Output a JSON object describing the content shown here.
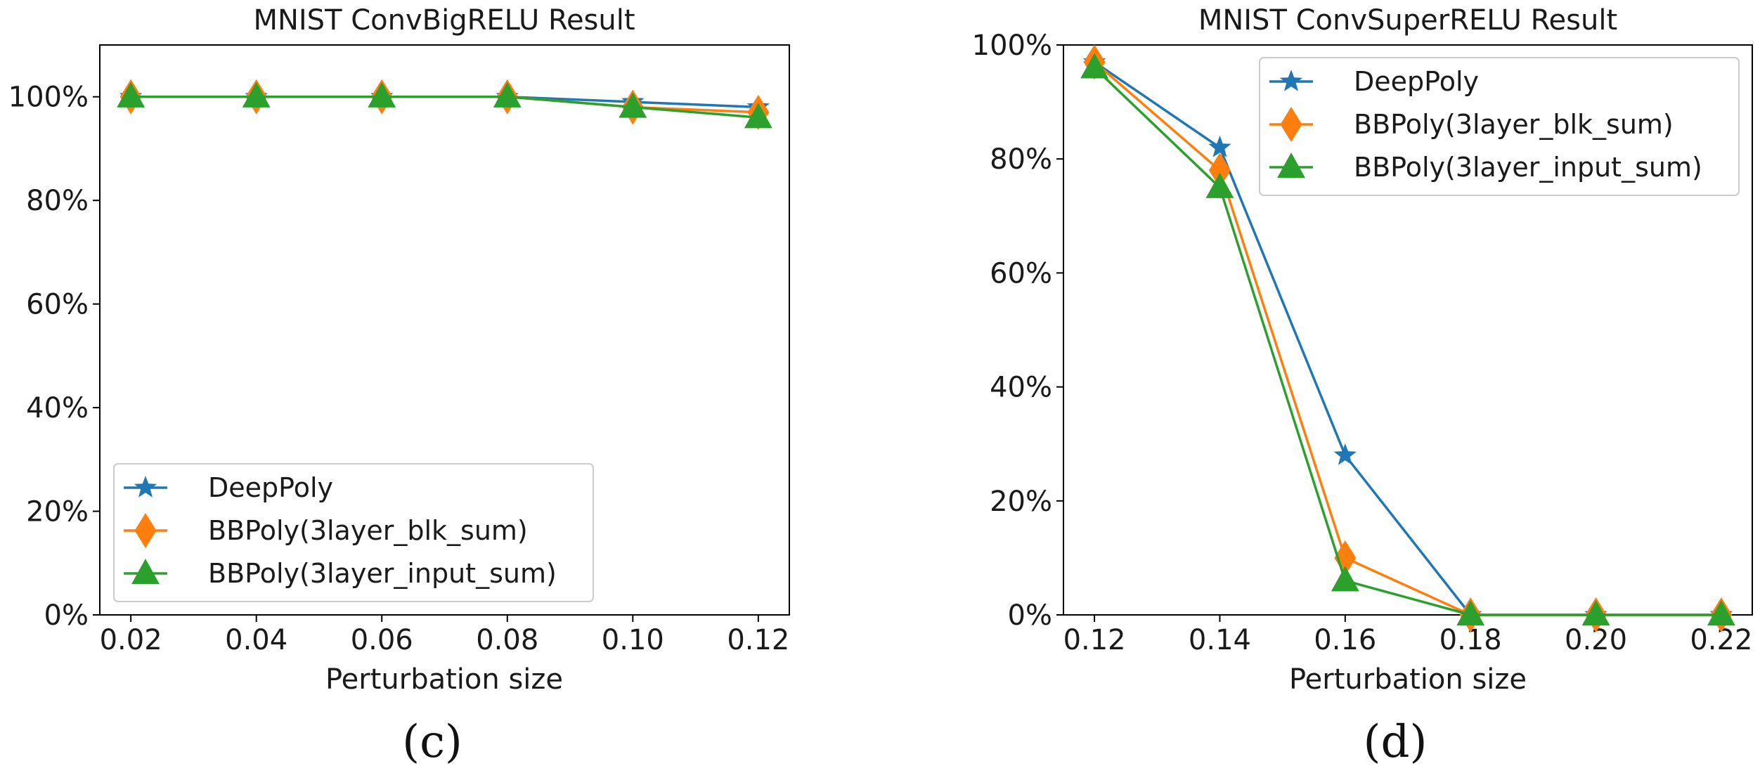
{
  "colors": {
    "DeepPoly": "#1f77b4",
    "BBPoly(3layer_blk_sum)": "#ff7f0e",
    "BBPoly(3layer_input_sum)": "#2ca02c"
  },
  "chart_data": [
    {
      "type": "line",
      "title": "MNIST ConvBigRELU Result",
      "xlabel": "Perturbation size",
      "caption": "(c)",
      "x": [
        0.02,
        0.04,
        0.06,
        0.08,
        0.1,
        0.12
      ],
      "x_tick_labels": [
        "0.02",
        "0.04",
        "0.06",
        "0.08",
        "0.10",
        "0.12"
      ],
      "y_tick_labels": [
        "0%",
        "20%",
        "40%",
        "60%",
        "80%",
        "100%"
      ],
      "y_ticks": [
        0,
        20,
        40,
        60,
        80,
        100
      ],
      "ylim": [
        0,
        110
      ],
      "legend_location": "lower-left",
      "series": [
        {
          "name": "DeepPoly",
          "marker": "star",
          "values": [
            100,
            100,
            100,
            100,
            99,
            98
          ]
        },
        {
          "name": "BBPoly(3layer_blk_sum)",
          "marker": "diamond",
          "values": [
            100,
            100,
            100,
            100,
            98,
            97
          ]
        },
        {
          "name": "BBPoly(3layer_input_sum)",
          "marker": "triangle",
          "values": [
            100,
            100,
            100,
            100,
            98,
            96
          ]
        }
      ]
    },
    {
      "type": "line",
      "title": "MNIST ConvSuperRELU Result",
      "xlabel": "Perturbation size",
      "caption": "(d)",
      "x": [
        0.12,
        0.14,
        0.16,
        0.18,
        0.2,
        0.22
      ],
      "x_tick_labels": [
        "0.12",
        "0.14",
        "0.16",
        "0.18",
        "0.20",
        "0.22"
      ],
      "y_tick_labels": [
        "0%",
        "20%",
        "40%",
        "60%",
        "80%",
        "100%"
      ],
      "y_ticks": [
        0,
        20,
        40,
        60,
        80,
        100
      ],
      "ylim": [
        0,
        100
      ],
      "legend_location": "upper-right",
      "series": [
        {
          "name": "DeepPoly",
          "marker": "star",
          "values": [
            97,
            82,
            28,
            0,
            0,
            0
          ]
        },
        {
          "name": "BBPoly(3layer_blk_sum)",
          "marker": "diamond",
          "values": [
            97,
            78,
            10,
            0,
            0,
            0
          ]
        },
        {
          "name": "BBPoly(3layer_input_sum)",
          "marker": "triangle",
          "values": [
            96,
            75,
            6,
            0,
            0,
            0
          ]
        }
      ]
    }
  ]
}
